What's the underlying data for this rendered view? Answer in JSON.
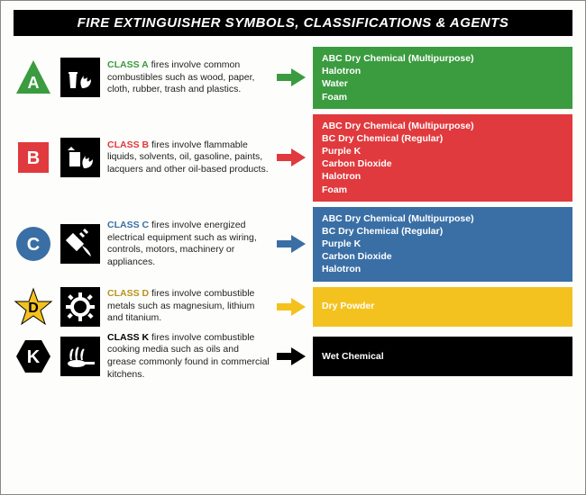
{
  "title": "FIRE EXTINGUISHER SYMBOLS, CLASSIFICATIONS & AGENTS",
  "colors": {
    "green": "#3a9b3f",
    "red": "#e03a3e",
    "blue": "#3a6fa6",
    "yellow": "#f4c21e",
    "black": "#000000",
    "yellow_text": "#b8921a"
  },
  "classes": [
    {
      "letter": "A",
      "symbol_shape": "triangle",
      "symbol_color": "#3a9b3f",
      "label_color": "#3a9b3f",
      "arrow_color": "#3a9b3f",
      "agent_bg": "#3a9b3f",
      "label": "CLASS A",
      "desc": " fires involve common combustibles such as wood, paper, cloth, rubber, trash and plastics.",
      "agents": [
        "ABC Dry Chemical (Multipurpose)",
        "Halotron",
        "Water",
        "Foam"
      ]
    },
    {
      "letter": "B",
      "symbol_shape": "square",
      "symbol_color": "#e03a3e",
      "label_color": "#e03a3e",
      "arrow_color": "#e03a3e",
      "agent_bg": "#e03a3e",
      "label": "CLASS B",
      "desc": " fires involve flammable liquids, solvents, oil, gasoline, paints, lacquers and other oil-based products.",
      "agents": [
        "ABC Dry Chemical (Multipurpose)",
        "BC Dry Chemical (Regular)",
        "Purple K",
        "Carbon Dioxide",
        "Halotron",
        "Foam"
      ]
    },
    {
      "letter": "C",
      "symbol_shape": "circle",
      "symbol_color": "#3a6fa6",
      "label_color": "#3a6fa6",
      "arrow_color": "#3a6fa6",
      "agent_bg": "#3a6fa6",
      "label": "CLASS C",
      "desc": " fires involve energized electrical equipment such as wiring, controls, motors, machinery or appliances.",
      "agents": [
        "ABC Dry Chemical (Multipurpose)",
        "BC Dry Chemical (Regular)",
        "Purple K",
        "Carbon Dioxide",
        "Halotron"
      ]
    },
    {
      "letter": "D",
      "symbol_shape": "star",
      "symbol_color": "#f4c21e",
      "label_color": "#b8921a",
      "arrow_color": "#f4c21e",
      "agent_bg": "#f4c21e",
      "label": "CLASS D",
      "desc": " fires involve combustible metals such as magnesium, lithium and titanium.",
      "agents": [
        "Dry Powder"
      ]
    },
    {
      "letter": "K",
      "symbol_shape": "hexagon",
      "symbol_color": "#000000",
      "label_color": "#000000",
      "arrow_color": "#000000",
      "agent_bg": "#000000",
      "label": "CLASS K",
      "desc": " fires involve combustible cooking media such as oils and grease commonly found in commercial kitchens.",
      "agents": [
        "Wet Chemical"
      ]
    }
  ]
}
